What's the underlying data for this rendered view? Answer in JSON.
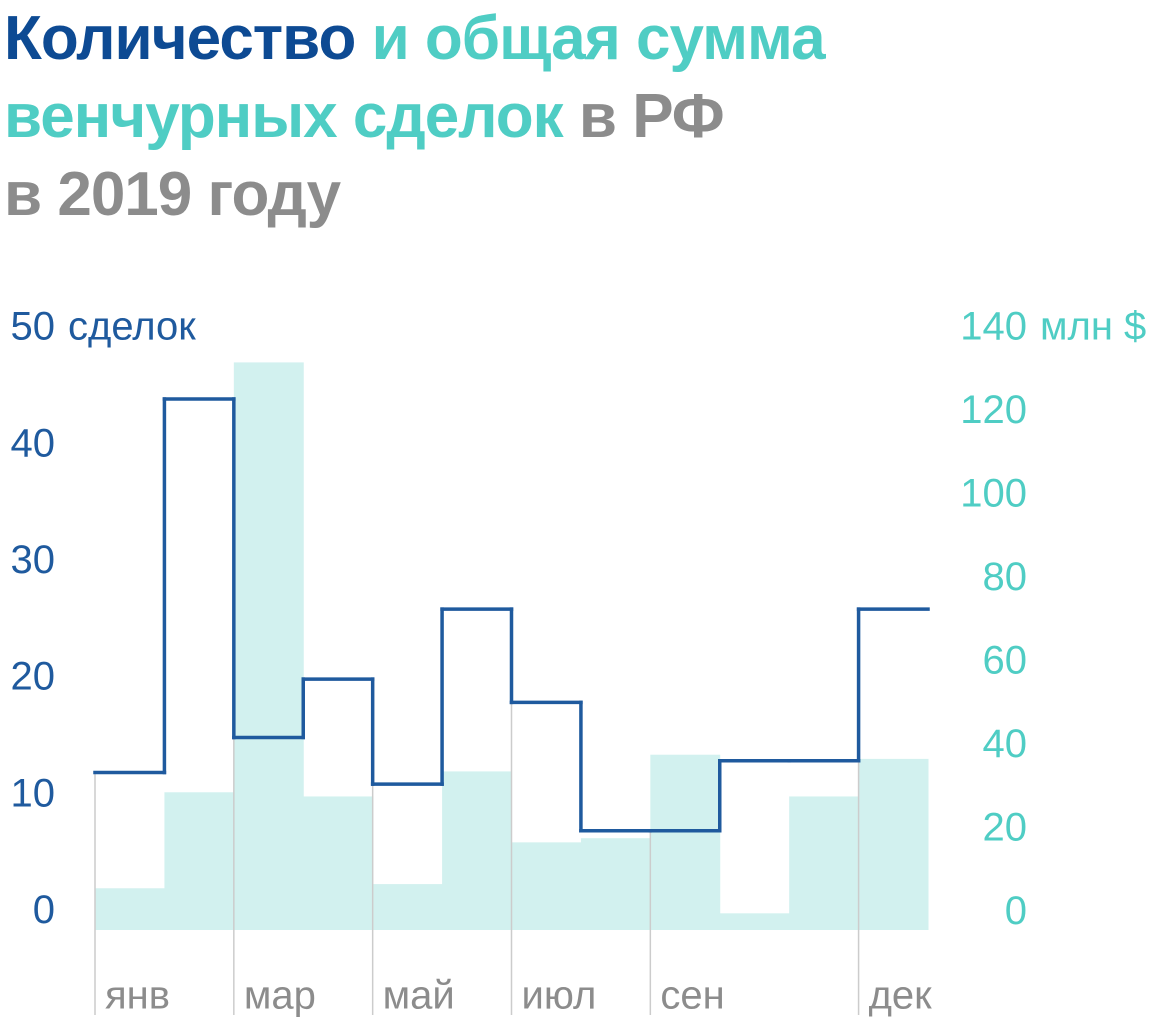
{
  "chart_data": {
    "type": "combo",
    "title": [
      [
        {
          "text": "Количество",
          "color": "#0d4a93"
        },
        {
          "text": "и общая сумма",
          "color": "#4fcdc4"
        }
      ],
      [
        {
          "text": "венчурных сделок",
          "color": "#4fcdc4"
        },
        {
          "text": "в РФ",
          "color": "#8c8c8c"
        }
      ],
      [
        {
          "text": "в 2019 году",
          "color": "#8c8c8c"
        }
      ]
    ],
    "y_label": "сделок",
    "y2_label": "млн $",
    "categories": [
      "янв",
      null,
      "мар",
      null,
      "май",
      null,
      "июл",
      null,
      "сен",
      null,
      null,
      "дек"
    ],
    "series": [
      {
        "type": "bar",
        "axis": "y2",
        "color": "#d2f1ef",
        "values": [
          6,
          29,
          132,
          28,
          7,
          34,
          17,
          18,
          38,
          0,
          28,
          37
        ]
      },
      {
        "type": "step",
        "axis": "y",
        "color": "#1f5a9e",
        "values": [
          12,
          44,
          15,
          20,
          11,
          26,
          18,
          7,
          7,
          13,
          13,
          26
        ]
      }
    ],
    "ylim": [
      -1.5,
      50
    ],
    "yticks": [
      0,
      10,
      20,
      30,
      40,
      50
    ],
    "y2lim": [
      -4,
      140
    ],
    "y2ticks": [
      0,
      20,
      40,
      60,
      80,
      100,
      120,
      140
    ],
    "y_color": "#1f5a9e",
    "y2_color": "#4fcdc4",
    "x_color": "#8c8c8c"
  }
}
